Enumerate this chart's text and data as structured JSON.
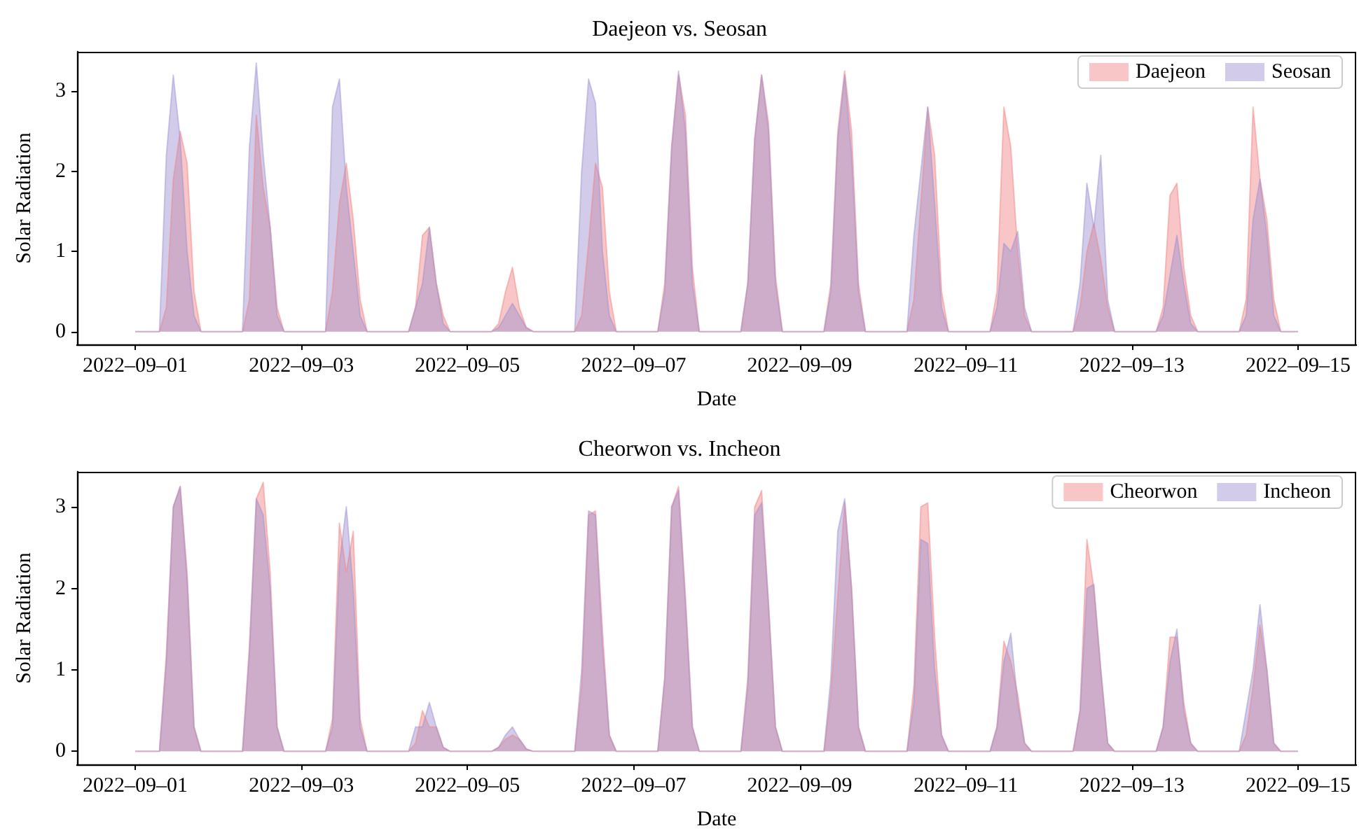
{
  "chart_data": [
    {
      "type": "area",
      "title": "Daejeon vs. Seosan",
      "xlabel": "Date",
      "ylabel": "Solar Radiation",
      "legend": "top right",
      "grid": false,
      "xlim": [
        "2022-08-31T07:12",
        "2022-09-15T16:48"
      ],
      "ylim": [
        -0.16,
        3.49
      ],
      "yticks": [
        0,
        1,
        2,
        3
      ],
      "xticks": [
        {
          "value": "2022-09-01",
          "label": "2022–09–01"
        },
        {
          "value": "2022-09-03",
          "label": "2022–09–03"
        },
        {
          "value": "2022-09-05",
          "label": "2022–09–05"
        },
        {
          "value": "2022-09-07",
          "label": "2022–09–07"
        },
        {
          "value": "2022-09-09",
          "label": "2022–09–09"
        },
        {
          "value": "2022-09-11",
          "label": "2022–09–11"
        },
        {
          "value": "2022-09-13",
          "label": "2022–09–13"
        },
        {
          "value": "2022-09-15",
          "label": "2022–09–15"
        }
      ],
      "x": [
        "2022-09-01T00:00",
        "2022-09-01T07:00",
        "2022-09-01T09:00",
        "2022-09-01T11:00",
        "2022-09-01T13:00",
        "2022-09-01T15:00",
        "2022-09-01T17:00",
        "2022-09-01T19:00",
        "2022-09-02T07:00",
        "2022-09-02T09:00",
        "2022-09-02T11:00",
        "2022-09-02T13:00",
        "2022-09-02T15:00",
        "2022-09-02T17:00",
        "2022-09-02T19:00",
        "2022-09-03T07:00",
        "2022-09-03T09:00",
        "2022-09-03T11:00",
        "2022-09-03T13:00",
        "2022-09-03T15:00",
        "2022-09-03T17:00",
        "2022-09-03T19:00",
        "2022-09-04T07:00",
        "2022-09-04T09:00",
        "2022-09-04T11:00",
        "2022-09-04T13:00",
        "2022-09-04T15:00",
        "2022-09-04T17:00",
        "2022-09-04T19:00",
        "2022-09-05T07:00",
        "2022-09-05T09:00",
        "2022-09-05T11:00",
        "2022-09-05T13:00",
        "2022-09-05T15:00",
        "2022-09-05T17:00",
        "2022-09-05T19:00",
        "2022-09-06T07:00",
        "2022-09-06T09:00",
        "2022-09-06T11:00",
        "2022-09-06T13:00",
        "2022-09-06T15:00",
        "2022-09-06T17:00",
        "2022-09-06T19:00",
        "2022-09-07T07:00",
        "2022-09-07T09:00",
        "2022-09-07T11:00",
        "2022-09-07T13:00",
        "2022-09-07T15:00",
        "2022-09-07T17:00",
        "2022-09-07T19:00",
        "2022-09-08T07:00",
        "2022-09-08T09:00",
        "2022-09-08T11:00",
        "2022-09-08T13:00",
        "2022-09-08T15:00",
        "2022-09-08T17:00",
        "2022-09-08T19:00",
        "2022-09-09T07:00",
        "2022-09-09T09:00",
        "2022-09-09T11:00",
        "2022-09-09T13:00",
        "2022-09-09T15:00",
        "2022-09-09T17:00",
        "2022-09-09T19:00",
        "2022-09-10T07:00",
        "2022-09-10T09:00",
        "2022-09-10T11:00",
        "2022-09-10T13:00",
        "2022-09-10T15:00",
        "2022-09-10T17:00",
        "2022-09-10T19:00",
        "2022-09-11T07:00",
        "2022-09-11T09:00",
        "2022-09-11T11:00",
        "2022-09-11T13:00",
        "2022-09-11T15:00",
        "2022-09-11T17:00",
        "2022-09-11T19:00",
        "2022-09-12T07:00",
        "2022-09-12T09:00",
        "2022-09-12T11:00",
        "2022-09-12T13:00",
        "2022-09-12T15:00",
        "2022-09-12T17:00",
        "2022-09-12T19:00",
        "2022-09-13T07:00",
        "2022-09-13T09:00",
        "2022-09-13T11:00",
        "2022-09-13T13:00",
        "2022-09-13T15:00",
        "2022-09-13T17:00",
        "2022-09-13T19:00",
        "2022-09-14T07:00",
        "2022-09-14T09:00",
        "2022-09-14T11:00",
        "2022-09-14T13:00",
        "2022-09-14T15:00",
        "2022-09-14T17:00",
        "2022-09-14T19:00",
        "2022-09-15T00:00"
      ],
      "series": [
        {
          "name": "Daejeon",
          "color": "#f08080",
          "values": [
            0,
            0,
            0.3,
            1.9,
            2.5,
            2.1,
            0.5,
            0,
            0,
            0.4,
            2.7,
            1.8,
            1.3,
            0.3,
            0,
            0,
            0.5,
            1.6,
            2.1,
            1.4,
            0.4,
            0,
            0,
            0.3,
            1.2,
            1.3,
            0.6,
            0.2,
            0,
            0,
            0.1,
            0.5,
            0.8,
            0.3,
            0.05,
            0,
            0,
            0.2,
            1.1,
            2.1,
            1.8,
            0.5,
            0,
            0,
            0.6,
            2.3,
            3.2,
            2.7,
            0.8,
            0,
            0,
            0.6,
            2.4,
            3.2,
            2.6,
            0.7,
            0,
            0,
            0.6,
            2.5,
            3.25,
            2.5,
            0.6,
            0,
            0,
            0.4,
            1.6,
            2.8,
            2.2,
            0.5,
            0,
            0,
            0.5,
            2.8,
            2.3,
            1,
            0.2,
            0,
            0,
            0.3,
            1,
            1.35,
            0.9,
            0.3,
            0,
            0,
            0.3,
            1.7,
            1.85,
            0.8,
            0.2,
            0,
            0,
            0.4,
            2.8,
            1.9,
            1.4,
            0.4,
            0,
            0
          ]
        },
        {
          "name": "Seosan",
          "color": "#9b8fd0",
          "values": [
            0,
            0,
            2.2,
            3.2,
            2.4,
            1,
            0.2,
            0,
            0,
            2.3,
            3.35,
            2.2,
            1.3,
            0.2,
            0,
            0,
            2.8,
            3.15,
            1.8,
            1,
            0.2,
            0,
            0,
            0.3,
            0.6,
            1.3,
            0.6,
            0.1,
            0,
            0,
            0.05,
            0.2,
            0.35,
            0.2,
            0.05,
            0,
            0,
            2,
            3.15,
            2.85,
            1,
            0.2,
            0,
            0,
            0.5,
            2.3,
            3.25,
            2.5,
            0.6,
            0,
            0,
            0.6,
            2.4,
            3.2,
            2.5,
            0.6,
            0,
            0,
            0.5,
            2.4,
            3.2,
            2.2,
            0.5,
            0,
            0,
            1.2,
            2,
            2.8,
            1.6,
            0.3,
            0,
            0,
            0.3,
            1.1,
            1,
            1.25,
            0.3,
            0,
            0,
            0.6,
            1.85,
            1.3,
            2.2,
            0.4,
            0,
            0,
            0.2,
            0.7,
            1.2,
            0.6,
            0.1,
            0,
            0,
            0.2,
            1.4,
            1.9,
            1.2,
            0.2,
            0,
            0
          ]
        }
      ]
    },
    {
      "type": "area",
      "title": "Cheorwon vs. Incheon",
      "xlabel": "Date",
      "ylabel": "Solar Radiation",
      "legend": "top right",
      "grid": false,
      "xlim": [
        "2022-08-31T07:12",
        "2022-09-15T16:48"
      ],
      "ylim": [
        -0.16,
        3.43
      ],
      "yticks": [
        0,
        1,
        2,
        3
      ],
      "xticks": [
        {
          "value": "2022-09-01",
          "label": "2022–09–01"
        },
        {
          "value": "2022-09-03",
          "label": "2022–09–03"
        },
        {
          "value": "2022-09-05",
          "label": "2022–09–05"
        },
        {
          "value": "2022-09-07",
          "label": "2022–09–07"
        },
        {
          "value": "2022-09-09",
          "label": "2022–09–09"
        },
        {
          "value": "2022-09-11",
          "label": "2022–09–11"
        },
        {
          "value": "2022-09-13",
          "label": "2022–09–13"
        },
        {
          "value": "2022-09-15",
          "label": "2022–09–15"
        }
      ],
      "x": [
        "2022-09-01T00:00",
        "2022-09-01T07:00",
        "2022-09-01T09:00",
        "2022-09-01T11:00",
        "2022-09-01T13:00",
        "2022-09-01T15:00",
        "2022-09-01T17:00",
        "2022-09-01T19:00",
        "2022-09-02T07:00",
        "2022-09-02T09:00",
        "2022-09-02T11:00",
        "2022-09-02T13:00",
        "2022-09-02T15:00",
        "2022-09-02T17:00",
        "2022-09-02T19:00",
        "2022-09-03T07:00",
        "2022-09-03T09:00",
        "2022-09-03T11:00",
        "2022-09-03T13:00",
        "2022-09-03T15:00",
        "2022-09-03T17:00",
        "2022-09-03T19:00",
        "2022-09-04T07:00",
        "2022-09-04T09:00",
        "2022-09-04T11:00",
        "2022-09-04T13:00",
        "2022-09-04T15:00",
        "2022-09-04T17:00",
        "2022-09-04T19:00",
        "2022-09-05T07:00",
        "2022-09-05T09:00",
        "2022-09-05T11:00",
        "2022-09-05T13:00",
        "2022-09-05T15:00",
        "2022-09-05T17:00",
        "2022-09-05T19:00",
        "2022-09-06T07:00",
        "2022-09-06T09:00",
        "2022-09-06T11:00",
        "2022-09-06T13:00",
        "2022-09-06T15:00",
        "2022-09-06T17:00",
        "2022-09-06T19:00",
        "2022-09-07T07:00",
        "2022-09-07T09:00",
        "2022-09-07T11:00",
        "2022-09-07T13:00",
        "2022-09-07T15:00",
        "2022-09-07T17:00",
        "2022-09-07T19:00",
        "2022-09-08T07:00",
        "2022-09-08T09:00",
        "2022-09-08T11:00",
        "2022-09-08T13:00",
        "2022-09-08T15:00",
        "2022-09-08T17:00",
        "2022-09-08T19:00",
        "2022-09-09T07:00",
        "2022-09-09T09:00",
        "2022-09-09T11:00",
        "2022-09-09T13:00",
        "2022-09-09T15:00",
        "2022-09-09T17:00",
        "2022-09-09T19:00",
        "2022-09-10T07:00",
        "2022-09-10T09:00",
        "2022-09-10T11:00",
        "2022-09-10T13:00",
        "2022-09-10T15:00",
        "2022-09-10T17:00",
        "2022-09-10T19:00",
        "2022-09-11T07:00",
        "2022-09-11T09:00",
        "2022-09-11T11:00",
        "2022-09-11T13:00",
        "2022-09-11T15:00",
        "2022-09-11T17:00",
        "2022-09-11T19:00",
        "2022-09-12T07:00",
        "2022-09-12T09:00",
        "2022-09-12T11:00",
        "2022-09-12T13:00",
        "2022-09-12T15:00",
        "2022-09-12T17:00",
        "2022-09-12T19:00",
        "2022-09-13T07:00",
        "2022-09-13T09:00",
        "2022-09-13T11:00",
        "2022-09-13T13:00",
        "2022-09-13T15:00",
        "2022-09-13T17:00",
        "2022-09-13T19:00",
        "2022-09-14T07:00",
        "2022-09-14T09:00",
        "2022-09-14T11:00",
        "2022-09-14T13:00",
        "2022-09-14T15:00",
        "2022-09-14T17:00",
        "2022-09-14T19:00",
        "2022-09-15T00:00"
      ],
      "series": [
        {
          "name": "Cheorwon",
          "color": "#f08080",
          "values": [
            0,
            0,
            1.2,
            3,
            3.25,
            2.2,
            0.3,
            0,
            0,
            1.3,
            3.1,
            3.3,
            2.2,
            0.3,
            0,
            0,
            0.4,
            2.8,
            2.2,
            2.7,
            0.4,
            0,
            0,
            0.1,
            0.5,
            0.3,
            0.3,
            0.05,
            0,
            0,
            0.05,
            0.15,
            0.2,
            0.15,
            0.03,
            0,
            0,
            0.8,
            2.9,
            2.95,
            1.5,
            0.2,
            0,
            0,
            0.9,
            3,
            3.25,
            1.9,
            0.3,
            0,
            0,
            0.9,
            3,
            3.2,
            1.8,
            0.3,
            0,
            0,
            0.7,
            1.9,
            3.05,
            2,
            0.3,
            0,
            0,
            0.8,
            3,
            3.05,
            1.4,
            0.2,
            0,
            0,
            0.3,
            1.35,
            1.1,
            0.7,
            0.1,
            0,
            0,
            0.5,
            2.6,
            2,
            1,
            0.1,
            0,
            0,
            0.3,
            1.4,
            1.4,
            0.6,
            0.1,
            0,
            0,
            0.2,
            0.8,
            1.55,
            1,
            0.1,
            0,
            0
          ]
        },
        {
          "name": "Incheon",
          "color": "#9b8fd0",
          "values": [
            0,
            0,
            1.1,
            3,
            3.25,
            2.1,
            0.3,
            0,
            0,
            1.2,
            3.1,
            2.9,
            2,
            0.3,
            0,
            0,
            0.3,
            2.3,
            3,
            2,
            0.3,
            0,
            0,
            0.3,
            0.3,
            0.6,
            0.3,
            0.05,
            0,
            0,
            0.05,
            0.2,
            0.3,
            0.15,
            0.03,
            0,
            0,
            1,
            2.95,
            2.9,
            1.3,
            0.2,
            0,
            0,
            0.9,
            3,
            3.2,
            1.8,
            0.3,
            0,
            0,
            0.8,
            2.9,
            3.05,
            1.8,
            0.3,
            0,
            0,
            0.9,
            2.7,
            3.1,
            2,
            0.3,
            0,
            0,
            0.6,
            2.6,
            2.55,
            1,
            0.2,
            0,
            0,
            0.3,
            1.1,
            1.45,
            0.6,
            0.1,
            0,
            0,
            0.5,
            2,
            2.05,
            1,
            0.1,
            0,
            0,
            0.3,
            1.1,
            1.5,
            0.5,
            0.1,
            0,
            0,
            0.5,
            1,
            1.8,
            1,
            0.1,
            0,
            0
          ]
        }
      ]
    }
  ]
}
